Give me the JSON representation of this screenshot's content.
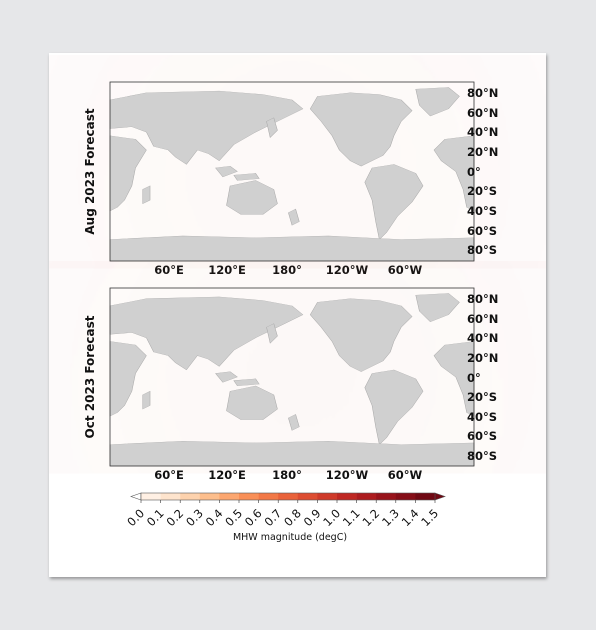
{
  "chart_data": {
    "type": "heatmap",
    "title": "",
    "colorbar": {
      "label": "MHW magnitude (degC)",
      "ticks": [
        "0.0",
        "0.1",
        "0.2",
        "0.3",
        "0.4",
        "0.5",
        "0.6",
        "0.7",
        "0.8",
        "0.9",
        "1.0",
        "1.1",
        "1.2",
        "1.3",
        "1.4",
        "1.5"
      ],
      "colors": [
        "#fff0e4",
        "#fee4cd",
        "#fdd2ad",
        "#fdbe8c",
        "#fca66f",
        "#f98f57",
        "#f27846",
        "#e9623a",
        "#dd4d31",
        "#cf3a2a",
        "#bf2823",
        "#ad1c1f",
        "#98131b",
        "#850d17",
        "#700813"
      ],
      "range": [
        0.0,
        1.5
      ],
      "extend": "both"
    },
    "panels": [
      {
        "title": "Aug 2023 Forecast",
        "x_ticks": [
          "60°E",
          "120°E",
          "180°",
          "120°W",
          "60°W"
        ],
        "y_ticks": [
          "80°N",
          "60°N",
          "40°N",
          "20°N",
          "0°",
          "20°S",
          "40°S",
          "60°S",
          "80°S"
        ]
      },
      {
        "title": "Oct 2023 Forecast",
        "x_ticks": [
          "60°E",
          "120°E",
          "180°",
          "120°W",
          "60°W"
        ],
        "y_ticks": [
          "80°N",
          "60°N",
          "40°N",
          "20°N",
          "0°",
          "20°S",
          "40°S",
          "60°S",
          "80°S"
        ]
      }
    ]
  }
}
